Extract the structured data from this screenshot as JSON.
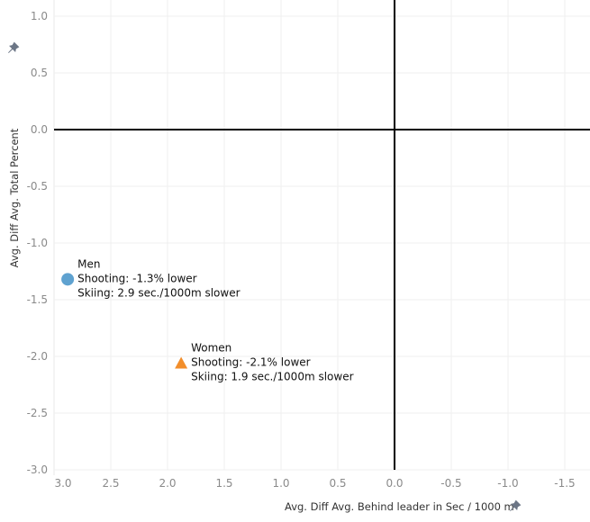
{
  "chart_data": {
    "type": "scatter",
    "xlabel": "Avg. Diff Avg. Behind leader in Sec / 1000 m",
    "ylabel": "Avg. Diff Avg. Total Percent",
    "xlim": [
      3.0,
      -1.7
    ],
    "ylim": [
      -3.05,
      1.05
    ],
    "x_reversed": true,
    "grid": true,
    "x_ticks": [
      "3.0",
      "2.5",
      "2.0",
      "1.5",
      "1.0",
      "0.5",
      "0.0",
      "-0.5",
      "-1.0",
      "-1.5"
    ],
    "x_tick_values": [
      3.0,
      2.5,
      2.0,
      1.5,
      1.0,
      0.5,
      0.0,
      -0.5,
      -1.0,
      -1.5
    ],
    "y_ticks": [
      "1.0",
      "0.5",
      "0.0",
      "-0.5",
      "-1.0",
      "-1.5",
      "-2.0",
      "-2.5",
      "-3.0"
    ],
    "y_tick_values": [
      1.0,
      0.5,
      0.0,
      -0.5,
      -1.0,
      -1.5,
      -2.0,
      -2.5,
      -3.0
    ],
    "reference_lines": {
      "x": 0,
      "y": 0
    },
    "points": [
      {
        "name": "Men",
        "x": 2.88,
        "y": -1.32,
        "shape": "circle",
        "color": "#5fa2d0",
        "label_lines": [
          "Men",
          "Shooting: -1.3% lower",
          "Skiing: 2.9 sec./1000m slower"
        ]
      },
      {
        "name": "Women",
        "x": 1.88,
        "y": -2.06,
        "shape": "triangle",
        "color": "#f28e2b",
        "label_lines": [
          "Women",
          "Shooting: -2.1% lower",
          "Skiing: 1.9 sec./1000m slower"
        ]
      }
    ]
  },
  "icons": {
    "pin": "pin-icon"
  }
}
